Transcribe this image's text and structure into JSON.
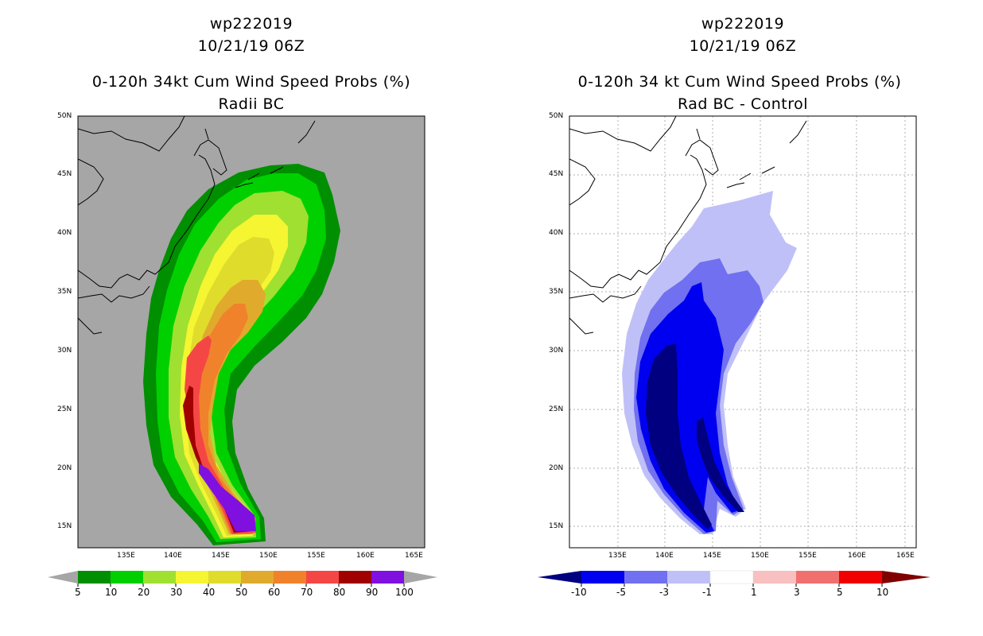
{
  "left_panel": {
    "title_line1": "wp222019",
    "title_line2": "10/21/19 06Z",
    "title_line3": "0-120h 34kt Cum Wind Speed Probs (%)",
    "title_line4": "Radii BC",
    "lat_labels": [
      "50N",
      "45N",
      "40N",
      "35N",
      "30N",
      "25N",
      "20N",
      "15N"
    ],
    "lon_labels": [
      "135E",
      "140E",
      "145E",
      "150E",
      "155E",
      "160E",
      "165E"
    ],
    "colorbar_labels": [
      "5",
      "10",
      "20",
      "30",
      "40",
      "50",
      "60",
      "70",
      "80",
      "90",
      "100"
    ],
    "colorbar_colors": [
      "#008f00",
      "#00d000",
      "#a0e030",
      "#f5f532",
      "#e0dc2c",
      "#e0aa2c",
      "#f0822c",
      "#f54646",
      "#a00000",
      "#8010e0"
    ],
    "background_color": "#a6a6a6"
  },
  "right_panel": {
    "title_line1": "wp222019",
    "title_line2": "10/21/19 06Z",
    "title_line3": "0-120h 34 kt Cum Wind Speed Probs (%)",
    "title_line4": "Rad BC - Control",
    "lat_labels": [
      "50N",
      "45N",
      "40N",
      "35N",
      "30N",
      "25N",
      "20N",
      "15N"
    ],
    "lon_labels": [
      "135E",
      "140E",
      "145E",
      "150E",
      "155E",
      "160E",
      "165E"
    ],
    "colorbar_labels": [
      "-10",
      "-5",
      "-3",
      "-1",
      "1",
      "3",
      "5",
      "10"
    ],
    "colorbar_colors": [
      "#000080",
      "#0000f0",
      "#7070f0",
      "#c0c0f8",
      "#ffffff",
      "#f8c0c0",
      "#f07070",
      "#f00000"
    ],
    "background_color": "#ffffff"
  }
}
